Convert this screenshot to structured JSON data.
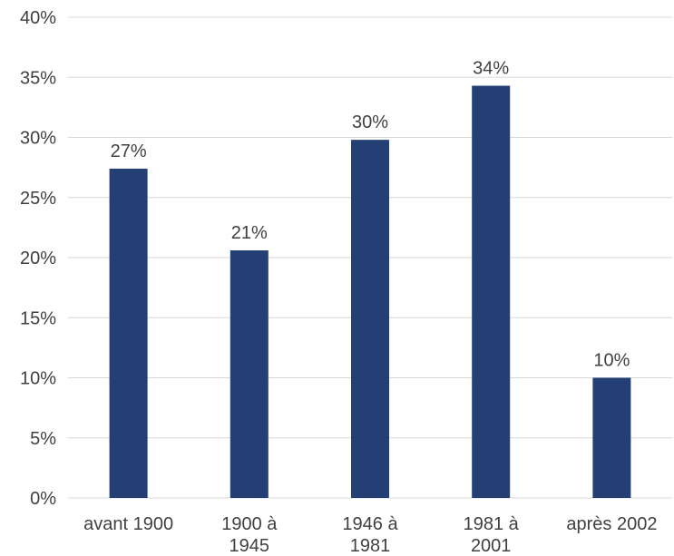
{
  "chart_data": {
    "type": "bar",
    "categories": [
      [
        "avant 1900"
      ],
      [
        "1900 à",
        "1945"
      ],
      [
        "1946 à",
        "1981"
      ],
      [
        "1981 à",
        "2001"
      ],
      [
        "après 2002"
      ]
    ],
    "values": [
      27.4,
      20.6,
      29.8,
      34.3,
      10.0
    ],
    "data_labels": [
      "27%",
      "21%",
      "30%",
      "34%",
      "10%"
    ],
    "yticks": [
      0,
      5,
      10,
      15,
      20,
      25,
      30,
      35,
      40
    ],
    "ytick_labels": [
      "0%",
      "5%",
      "10%",
      "15%",
      "20%",
      "25%",
      "30%",
      "35%",
      "40%"
    ],
    "ylim": [
      0,
      40
    ],
    "grid": true,
    "legend": "none",
    "colors": {
      "bar": "#243f73",
      "grid": "#d9d9d9",
      "text": "#404040"
    }
  }
}
